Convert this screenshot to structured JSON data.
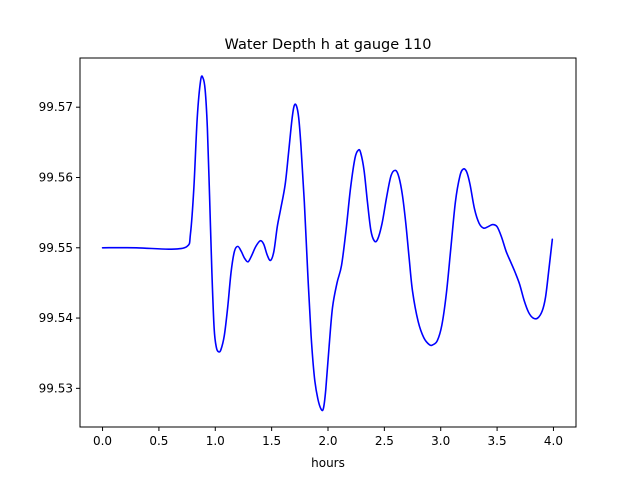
{
  "chart_data": {
    "type": "line",
    "title": "Water Depth h at gauge 110",
    "xlabel": "hours",
    "ylabel": "",
    "xlim": [
      -0.2,
      4.2
    ],
    "ylim": [
      99.5245,
      99.577
    ],
    "xticks": [
      0.0,
      0.5,
      1.0,
      1.5,
      2.0,
      2.5,
      3.0,
      3.5,
      4.0
    ],
    "xtick_labels": [
      "0.0",
      "0.5",
      "1.0",
      "1.5",
      "2.0",
      "2.5",
      "3.0",
      "3.5",
      "4.0"
    ],
    "yticks": [
      99.53,
      99.54,
      99.55,
      99.56,
      99.57
    ],
    "ytick_labels": [
      "99.53",
      "99.54",
      "99.55",
      "99.56",
      "99.57"
    ],
    "grid": false,
    "series": [
      {
        "color": "#0000ff",
        "x": [
          0.0,
          0.3,
          0.6,
          0.75,
          0.78,
          0.81,
          0.84,
          0.87,
          0.89,
          0.91,
          0.93,
          0.95,
          0.97,
          0.99,
          1.01,
          1.03,
          1.05,
          1.08,
          1.11,
          1.14,
          1.17,
          1.2,
          1.23,
          1.26,
          1.29,
          1.32,
          1.36,
          1.4,
          1.43,
          1.46,
          1.49,
          1.52,
          1.55,
          1.58,
          1.62,
          1.65,
          1.68,
          1.7,
          1.72,
          1.74,
          1.76,
          1.79,
          1.82,
          1.85,
          1.88,
          1.91,
          1.94,
          1.96,
          1.98,
          2.01,
          2.04,
          2.08,
          2.12,
          2.16,
          2.2,
          2.24,
          2.27,
          2.29,
          2.32,
          2.35,
          2.38,
          2.41,
          2.44,
          2.48,
          2.52,
          2.56,
          2.6,
          2.63,
          2.66,
          2.69,
          2.72,
          2.75,
          2.8,
          2.85,
          2.9,
          2.93,
          2.97,
          3.01,
          3.05,
          3.09,
          3.13,
          3.17,
          3.2,
          3.23,
          3.26,
          3.3,
          3.34,
          3.38,
          3.42,
          3.46,
          3.5,
          3.54,
          3.58,
          3.62,
          3.66,
          3.7,
          3.74,
          3.78,
          3.82,
          3.86,
          3.9,
          3.93,
          3.96,
          3.99
        ],
        "y": [
          99.55,
          99.55,
          99.5498,
          99.5502,
          99.552,
          99.5585,
          99.5685,
          99.5738,
          99.5742,
          99.5725,
          99.567,
          99.557,
          99.5465,
          99.5385,
          99.5358,
          99.5352,
          99.5355,
          99.5375,
          99.5415,
          99.5465,
          99.5495,
          99.5502,
          99.5495,
          99.5485,
          99.548,
          99.5488,
          99.5502,
          99.551,
          99.5505,
          99.549,
          99.5482,
          99.5495,
          99.553,
          99.5555,
          99.559,
          99.5635,
          99.5682,
          99.5702,
          99.5702,
          99.5685,
          99.5645,
          99.5565,
          99.5465,
          99.5375,
          99.5315,
          99.5285,
          99.527,
          99.5272,
          99.5298,
          99.536,
          99.5415,
          99.545,
          99.5475,
          99.5525,
          99.5585,
          99.5628,
          99.5639,
          99.5635,
          99.561,
          99.5565,
          99.5525,
          99.551,
          99.5512,
          99.5535,
          99.5572,
          99.5603,
          99.561,
          99.56,
          99.5575,
          99.5535,
          99.5485,
          99.5438,
          99.5395,
          99.5372,
          99.5362,
          99.5362,
          99.5368,
          99.539,
          99.5435,
          99.55,
          99.5565,
          99.5602,
          99.5612,
          99.5608,
          99.559,
          99.5555,
          99.5535,
          99.5528,
          99.553,
          99.5533,
          99.553,
          99.5515,
          99.5495,
          99.548,
          99.5465,
          99.5448,
          99.5425,
          99.5408,
          99.54,
          99.54,
          99.541,
          99.543,
          99.547,
          99.5512
        ]
      }
    ]
  }
}
